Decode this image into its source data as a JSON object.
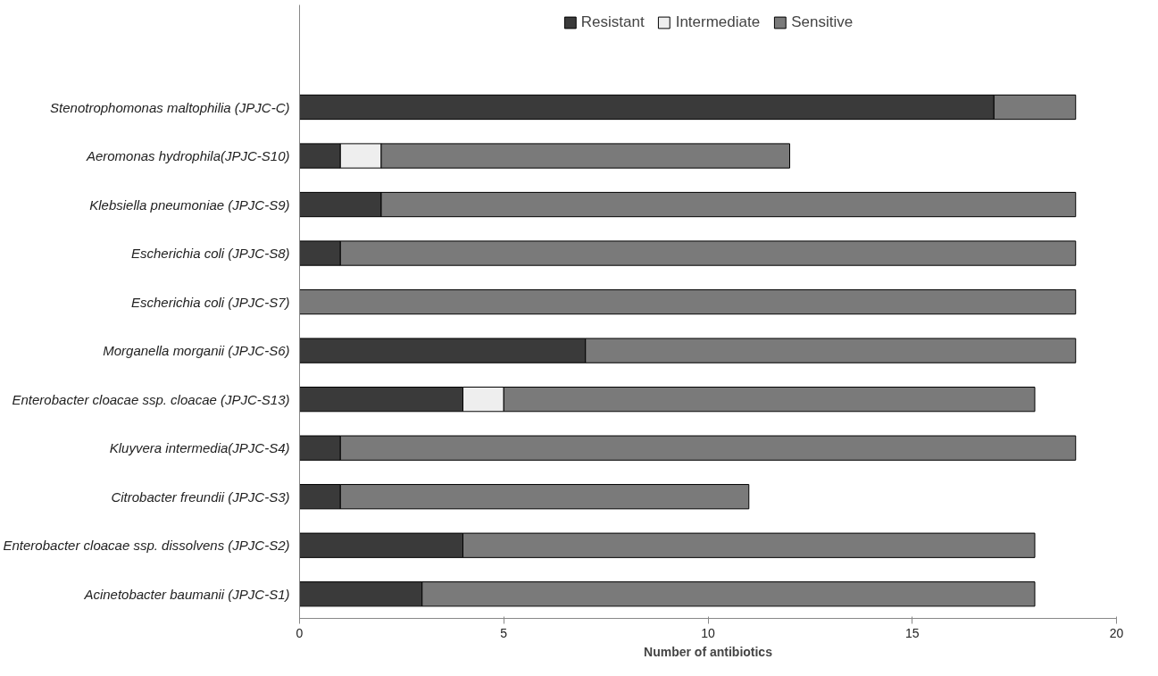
{
  "chart_data": {
    "type": "bar",
    "orientation": "horizontal",
    "stacked": true,
    "categories": [
      "Stenotrophomonas maltophilia (JPJC-C)",
      "Aeromonas hydrophila(JPJC-S10)",
      "Klebsiella pneumoniae (JPJC-S9)",
      "Escherichia coli (JPJC-S8)",
      "Escherichia coli (JPJC-S7)",
      "Morganella morganii (JPJC-S6)",
      "Enterobacter cloacae ssp. cloacae (JPJC-S13)",
      "Kluyvera intermedia(JPJC-S4)",
      "Citrobacter freundii (JPJC-S3)",
      "Enterobacter cloacae ssp. dissolvens (JPJC-S2)",
      "Acinetobacter baumanii (JPJC-S1)"
    ],
    "series": [
      {
        "name": "Resistant",
        "color": "#3a3a3a",
        "values": [
          17,
          1,
          2,
          1,
          0,
          7,
          4,
          1,
          1,
          4,
          3
        ]
      },
      {
        "name": "Intermediate",
        "color": "#eeeeee",
        "values": [
          0,
          1,
          0,
          0,
          0,
          0,
          1,
          0,
          0,
          0,
          0
        ]
      },
      {
        "name": "Sensitive",
        "color": "#7a7a7a",
        "values": [
          2,
          10,
          17,
          18,
          19,
          12,
          13,
          18,
          10,
          14,
          15
        ]
      }
    ],
    "xlabel": "Number of antibiotics",
    "xlim": [
      0,
      20
    ],
    "xticks": [
      0,
      5,
      10,
      15,
      20
    ],
    "grid": false,
    "legend": "top"
  }
}
